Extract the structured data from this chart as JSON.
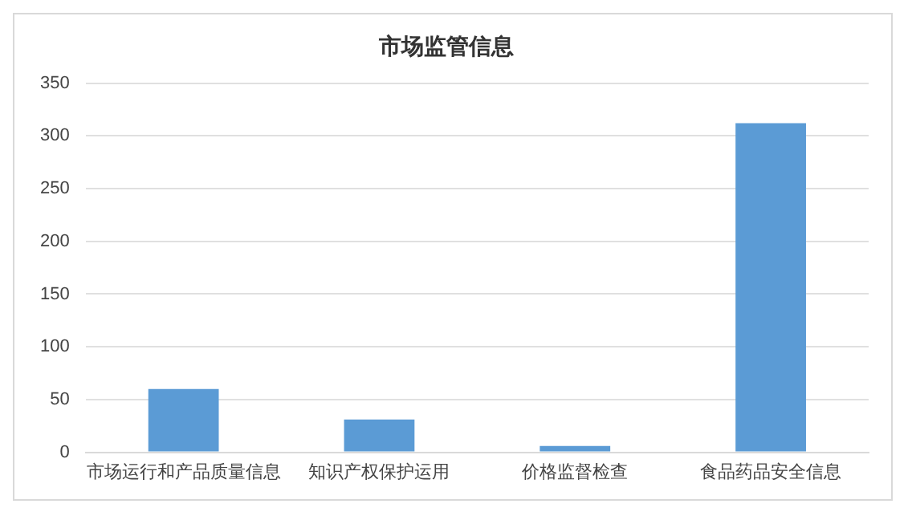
{
  "chart_data": {
    "type": "bar",
    "title": "市场监管信息",
    "categories": [
      "市场运行和产品质量信息",
      "知识产权保护运用",
      "价格监督检查",
      "食品药品安全信息"
    ],
    "values": [
      60,
      31,
      6,
      312
    ],
    "color": "#5b9bd5",
    "ylim": [
      0,
      350
    ],
    "yticks": [
      0,
      50,
      100,
      150,
      200,
      250,
      300,
      350
    ],
    "grid": "y",
    "legend": false
  }
}
